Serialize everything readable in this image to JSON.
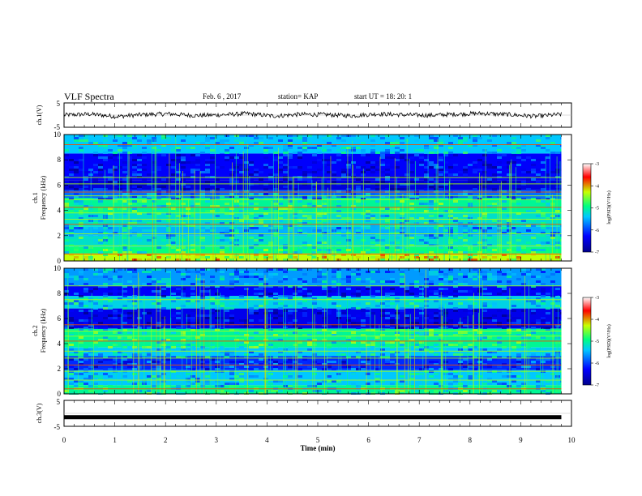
{
  "header": {
    "title": "VLF Spectra",
    "date": "Feb. 6 , 2017",
    "station": "station= KAP",
    "start_ut": "start  UT =   18: 20: 1"
  },
  "chart_data": [
    {
      "id": "ch1_waveform",
      "type": "line",
      "ylabel": "ch.1(V)",
      "ylim": [
        -5,
        5
      ],
      "yticks": [
        "5",
        "-5"
      ],
      "xlim": [
        0,
        10
      ],
      "data_extent_min": [
        0,
        9.8
      ],
      "series": [
        {
          "values_approx_V": [
            0.0,
            0.4,
            -0.6,
            0.2,
            0.5,
            -0.2,
            0.1,
            0.6,
            -0.4,
            0.3,
            0.2,
            -0.3,
            0.5,
            0.1,
            -0.1,
            0.4,
            0.7,
            0.2,
            -0.5,
            0.3
          ]
        }
      ]
    },
    {
      "id": "ch1_spectrogram",
      "type": "heatmap",
      "ylabel_line1": "ch.1",
      "ylabel_line2": "Frequency (kHz)",
      "ylim": [
        0,
        10
      ],
      "yticks": [
        "0",
        "2",
        "4",
        "6",
        "8",
        "10"
      ],
      "xlim": [
        0,
        10
      ],
      "data_extent_min": [
        0,
        9.8
      ],
      "colorbar": {
        "label": "log(PSD)(V²/Hz)",
        "range": [
          -7,
          -3
        ],
        "ticks": [
          "-3",
          "-4",
          "-5",
          "-6",
          "-7"
        ],
        "colors": [
          "#00008c",
          "#0000ff",
          "#00c8ff",
          "#00ff80",
          "#c8ff00",
          "#ff0000",
          "#ffffff"
        ]
      },
      "bands_kHz": [
        {
          "from": 0.0,
          "to": 0.6,
          "level": -4.3
        },
        {
          "from": 0.6,
          "to": 1.1,
          "level": -4.9
        },
        {
          "from": 1.1,
          "to": 2.0,
          "level": -5.2
        },
        {
          "from": 2.0,
          "to": 2.7,
          "level": -5.5
        },
        {
          "from": 2.7,
          "to": 3.8,
          "level": -5.2
        },
        {
          "from": 3.8,
          "to": 5.0,
          "level": -5.0
        },
        {
          "from": 5.0,
          "to": 5.6,
          "level": -5.8
        },
        {
          "from": 5.6,
          "to": 6.4,
          "level": -6.5
        },
        {
          "from": 6.4,
          "to": 8.5,
          "level": -6.3
        },
        {
          "from": 8.5,
          "to": 10.0,
          "level": -5.4
        }
      ],
      "lines_kHz": [
        0.55,
        1.2,
        2.15,
        2.9,
        3.3,
        3.8,
        4.25,
        4.85,
        5.15,
        5.45,
        6.1,
        6.6,
        9.2
      ]
    },
    {
      "id": "ch2_spectrogram",
      "type": "heatmap",
      "ylabel_line1": "ch.2",
      "ylabel_line2": "Frequency (kHz)",
      "ylim": [
        0,
        10
      ],
      "yticks": [
        "0",
        "2",
        "4",
        "6",
        "8",
        "10"
      ],
      "xlim": [
        0,
        10
      ],
      "data_extent_min": [
        0,
        9.8
      ],
      "colorbar": {
        "label": "log(PSD)(V²/Hz)",
        "range": [
          -7,
          -3
        ],
        "ticks": [
          "-3",
          "-4",
          "-5",
          "-6",
          "-7"
        ],
        "colors": [
          "#00008c",
          "#0000ff",
          "#00c8ff",
          "#00ff80",
          "#c8ff00",
          "#ff0000",
          "#ffffff"
        ]
      },
      "bands_kHz": [
        {
          "from": 0.0,
          "to": 0.7,
          "level": -5.0
        },
        {
          "from": 0.7,
          "to": 1.9,
          "level": -5.4
        },
        {
          "from": 1.9,
          "to": 3.0,
          "level": -6.1
        },
        {
          "from": 3.0,
          "to": 3.7,
          "level": -5.4
        },
        {
          "from": 3.7,
          "to": 5.2,
          "level": -5.0
        },
        {
          "from": 5.2,
          "to": 6.8,
          "level": -6.4
        },
        {
          "from": 6.8,
          "to": 7.8,
          "level": -5.3
        },
        {
          "from": 7.8,
          "to": 8.6,
          "level": -6.3
        },
        {
          "from": 8.6,
          "to": 10.0,
          "level": -5.6
        }
      ],
      "lines_kHz": [
        0.4,
        1.1,
        1.8,
        2.3,
        2.85,
        3.4,
        4.2,
        4.6,
        5.0,
        5.5,
        7.5,
        8.6
      ]
    },
    {
      "id": "ch3_waveform",
      "type": "line",
      "ylabel": "ch.3(V)",
      "ylim": [
        -5,
        5
      ],
      "yticks": [
        "5",
        "-5"
      ],
      "xlim": [
        0,
        10
      ],
      "data_extent_min": [
        0,
        9.8
      ],
      "series": [
        {
          "values_approx_V": [
            -1.5,
            -1.5
          ]
        }
      ]
    }
  ],
  "x_axis": {
    "label": "Time (min)",
    "ticks": [
      "0",
      "1",
      "2",
      "3",
      "4",
      "5",
      "6",
      "7",
      "8",
      "9",
      "10"
    ]
  }
}
